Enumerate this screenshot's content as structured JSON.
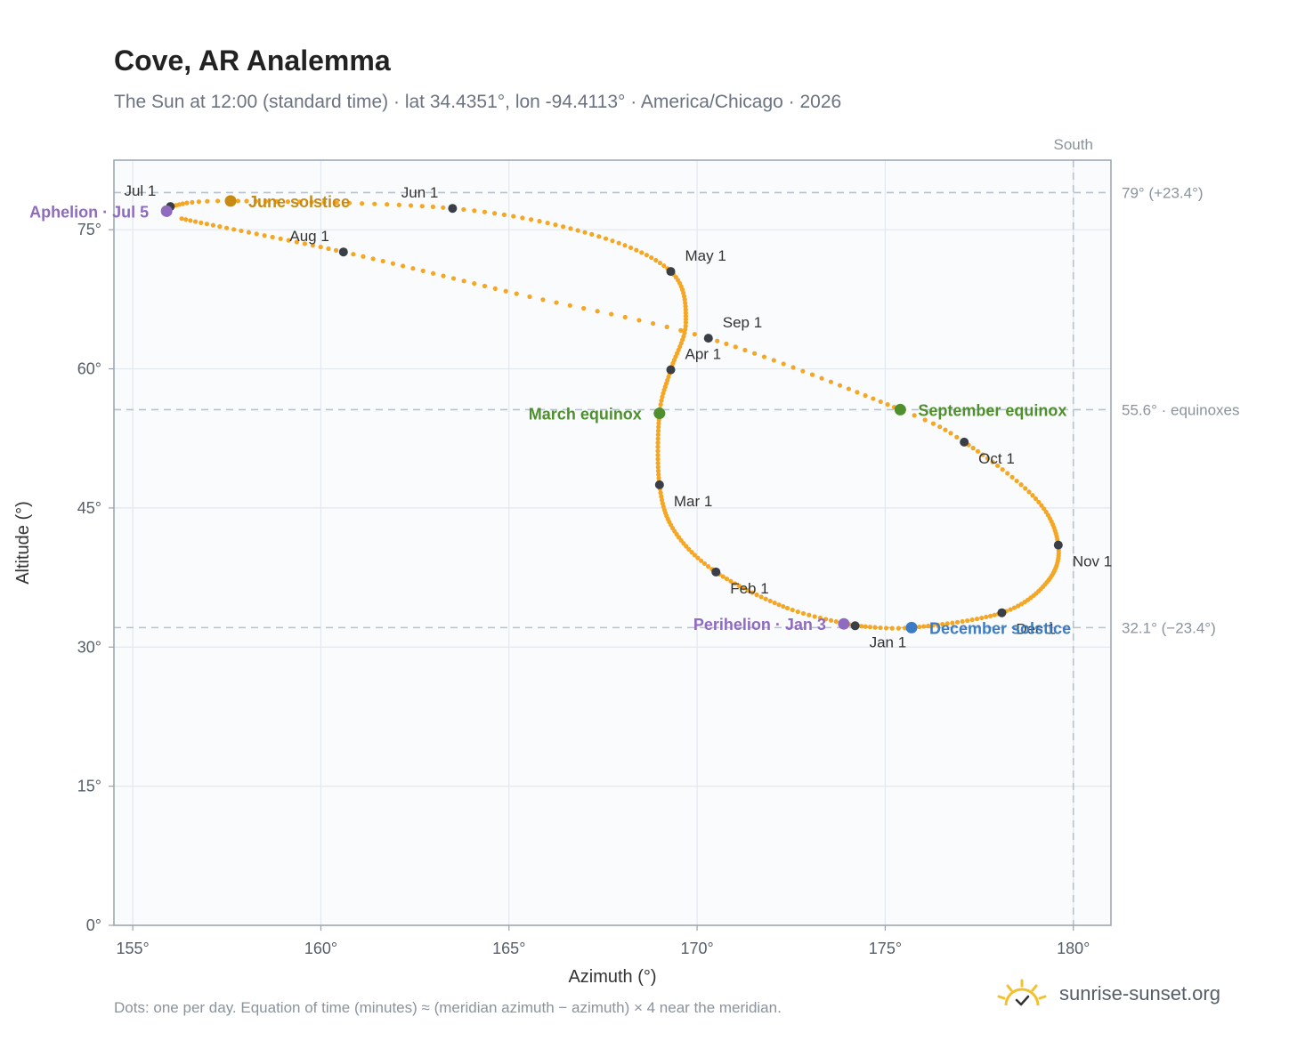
{
  "header": {
    "title": "Cove, AR Analemma",
    "subtitle": "The Sun at 12:00 (standard time) · lat 34.4351°, lon -94.4113° · America/Chicago · 2026"
  },
  "footer": {
    "note": "Dots: one per day. Equation of time (minutes) ≈ (meridian azimuth − azimuth) × 4 near the meridian.",
    "brand": "sunrise-sunset.org"
  },
  "colors": {
    "path": "#f5a623",
    "month_dot": "#3a3f47",
    "june_solstice": "#c88a12",
    "december_solstice": "#3b7dc4",
    "equinox": "#4f8f2e",
    "apsis": "#8e6bbf",
    "grid": "#e3e8ee",
    "plot_bg": "#f9fbfd",
    "reference": "#b8c2cc"
  },
  "chart_data": {
    "type": "scatter",
    "title": "Cove, AR Analemma",
    "xlabel": "Azimuth (°)",
    "ylabel": "Altitude (°)",
    "xlim": [
      154.5,
      181
    ],
    "ylim": [
      0,
      82.5
    ],
    "x_ticks": [
      155,
      160,
      165,
      170,
      175,
      180
    ],
    "x_tick_labels": [
      "155°",
      "160°",
      "165°",
      "170°",
      "175°",
      "180°"
    ],
    "y_ticks": [
      0,
      15,
      30,
      45,
      60,
      75
    ],
    "y_tick_labels": [
      "0°",
      "15°",
      "30°",
      "45°",
      "60°",
      "75°"
    ],
    "grid": true,
    "south_line": {
      "x": 180,
      "label": "South"
    },
    "reference_lines": [
      {
        "y": 79.0,
        "label": "79° (+23.4°)"
      },
      {
        "y": 55.6,
        "label": "55.6° · equinoxes"
      },
      {
        "y": 32.1,
        "label": "32.1° (−23.4°)"
      }
    ],
    "daily_series_anchors": [
      {
        "day": 1,
        "x": 174.2,
        "y": 32.3
      },
      {
        "day": 15,
        "x": 172.4,
        "y": 34.2
      },
      {
        "day": 32,
        "x": 170.5,
        "y": 38.1
      },
      {
        "day": 46,
        "x": 169.4,
        "y": 42.5
      },
      {
        "day": 60,
        "x": 169.0,
        "y": 47.5
      },
      {
        "day": 79,
        "x": 169.0,
        "y": 55.2
      },
      {
        "day": 91,
        "x": 169.3,
        "y": 59.9
      },
      {
        "day": 105,
        "x": 169.7,
        "y": 65.0
      },
      {
        "day": 121,
        "x": 169.3,
        "y": 70.5
      },
      {
        "day": 136,
        "x": 167.2,
        "y": 74.5
      },
      {
        "day": 152,
        "x": 163.5,
        "y": 77.3
      },
      {
        "day": 172,
        "x": 157.6,
        "y": 78.1
      },
      {
        "day": 182,
        "x": 156.0,
        "y": 77.5
      },
      {
        "day": 186,
        "x": 155.9,
        "y": 77.0
      },
      {
        "day": 190,
        "x": 156.3,
        "y": 76.2
      },
      {
        "day": 213,
        "x": 160.6,
        "y": 72.6
      },
      {
        "day": 230,
        "x": 165.2,
        "y": 68.1
      },
      {
        "day": 244,
        "x": 170.3,
        "y": 63.3
      },
      {
        "day": 266,
        "x": 175.4,
        "y": 55.6
      },
      {
        "day": 274,
        "x": 177.1,
        "y": 52.1
      },
      {
        "day": 290,
        "x": 179.0,
        "y": 46.0
      },
      {
        "day": 305,
        "x": 179.6,
        "y": 41.0
      },
      {
        "day": 320,
        "x": 179.3,
        "y": 37.0
      },
      {
        "day": 335,
        "x": 178.1,
        "y": 33.7
      },
      {
        "day": 355,
        "x": 175.7,
        "y": 32.1
      },
      {
        "day": 366,
        "x": 174.2,
        "y": 32.3
      }
    ],
    "month_markers": [
      {
        "label": "Jan 1",
        "x": 174.2,
        "y": 32.3,
        "anchor": "below-right"
      },
      {
        "label": "Feb 1",
        "x": 170.5,
        "y": 38.1,
        "anchor": "below-right"
      },
      {
        "label": "Mar 1",
        "x": 169.0,
        "y": 47.5,
        "anchor": "below-right"
      },
      {
        "label": "Apr 1",
        "x": 169.3,
        "y": 59.9,
        "anchor": "above-right"
      },
      {
        "label": "May 1",
        "x": 169.3,
        "y": 70.5,
        "anchor": "above-right"
      },
      {
        "label": "Jun 1",
        "x": 163.5,
        "y": 77.3,
        "anchor": "above-left"
      },
      {
        "label": "Jul 1",
        "x": 156.0,
        "y": 77.5,
        "anchor": "above-left"
      },
      {
        "label": "Aug 1",
        "x": 160.6,
        "y": 72.6,
        "anchor": "above-left"
      },
      {
        "label": "Sep 1",
        "x": 170.3,
        "y": 63.3,
        "anchor": "above-right"
      },
      {
        "label": "Oct 1",
        "x": 177.1,
        "y": 52.1,
        "anchor": "below-right"
      },
      {
        "label": "Nov 1",
        "x": 179.6,
        "y": 41.0,
        "anchor": "below-right"
      },
      {
        "label": "Dec 1",
        "x": 178.1,
        "y": 33.7,
        "anchor": "below-right"
      }
    ],
    "events": [
      {
        "label": "June solstice",
        "x": 157.6,
        "y": 78.1,
        "color_key": "june_solstice",
        "side": "right"
      },
      {
        "label": "December solstice",
        "x": 175.7,
        "y": 32.1,
        "color_key": "december_solstice",
        "side": "right"
      },
      {
        "label": "March equinox",
        "x": 169.0,
        "y": 55.2,
        "color_key": "equinox",
        "side": "left"
      },
      {
        "label": "September equinox",
        "x": 175.4,
        "y": 55.6,
        "color_key": "equinox",
        "side": "right"
      },
      {
        "label": "Aphelion · Jul 5",
        "x": 155.9,
        "y": 77.0,
        "color_key": "apsis",
        "side": "left"
      },
      {
        "label": "Perihelion · Jan 3",
        "x": 173.9,
        "y": 32.5,
        "color_key": "apsis",
        "side": "left"
      }
    ]
  }
}
